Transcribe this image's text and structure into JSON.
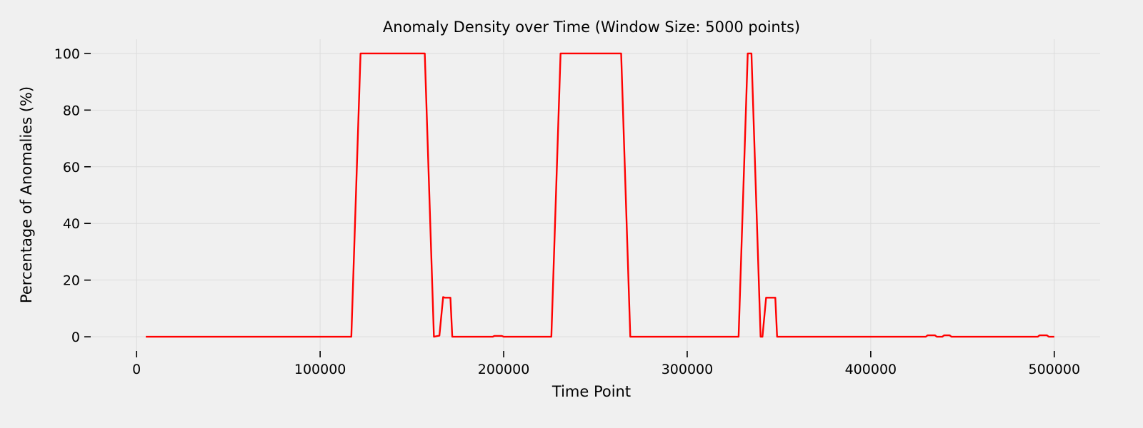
{
  "chart_data": {
    "type": "line",
    "title": "Anomaly Density over Time (Window Size: 5000 points)",
    "xlabel": "Time Point",
    "ylabel": "Percentage of Anomalies (%)",
    "xlim": [
      -25000,
      525000
    ],
    "ylim": [
      -5,
      105
    ],
    "xticks": [
      0,
      100000,
      200000,
      300000,
      400000,
      500000
    ],
    "yticks": [
      0,
      20,
      40,
      60,
      80,
      100
    ],
    "grid": true,
    "series": [
      {
        "color": "#ff0000",
        "x": [
          5000,
          117000,
          122000,
          157000,
          162000,
          165000,
          167000,
          168000,
          169000,
          171000,
          172000,
          194000,
          195000,
          199000,
          200000,
          226000,
          231000,
          264000,
          269000,
          328000,
          333000,
          335000,
          340000,
          341000,
          343000,
          348000,
          349000,
          430000,
          431000,
          435000,
          436000,
          439000,
          440000,
          443000,
          444000,
          491000,
          492000,
          496000,
          497000,
          500000
        ],
        "y": [
          0,
          0,
          100,
          100,
          0,
          0.4,
          14,
          13.8,
          13.8,
          13.8,
          0,
          0,
          0.3,
          0.3,
          0,
          0,
          100,
          100,
          0,
          0,
          100,
          100,
          0,
          0,
          13.8,
          13.8,
          0,
          0,
          0.5,
          0.5,
          0,
          0,
          0.5,
          0.5,
          0,
          0,
          0.5,
          0.5,
          0,
          0
        ]
      }
    ]
  }
}
